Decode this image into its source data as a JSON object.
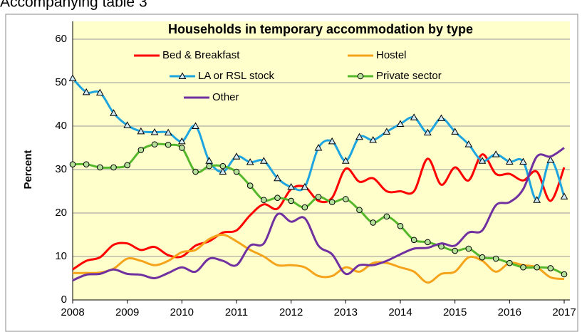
{
  "header": "Accompanying table 3",
  "chart_data": {
    "type": "line",
    "title": "Households in temporary accommodation by type",
    "y_label": "Percent",
    "x": [
      2008,
      2008.25,
      2008.5,
      2008.75,
      2009,
      2009.25,
      2009.5,
      2009.75,
      2010,
      2010.25,
      2010.5,
      2010.75,
      2011,
      2011.25,
      2011.5,
      2011.75,
      2012,
      2012.25,
      2012.5,
      2012.75,
      2013,
      2013.25,
      2013.5,
      2013.75,
      2014,
      2014.25,
      2014.5,
      2014.75,
      2015,
      2015.25,
      2015.5,
      2015.75,
      2016,
      2016.25,
      2016.5,
      2016.75,
      2017
    ],
    "xlim": [
      2008,
      2017
    ],
    "xticks": [
      2008,
      2009,
      2010,
      2011,
      2012,
      2013,
      2014,
      2015,
      2016,
      2017
    ],
    "ylim": [
      0,
      60
    ],
    "yticks": [
      0,
      10,
      20,
      30,
      40,
      50,
      60
    ],
    "grid": true,
    "series": [
      {
        "name": "Bed & Breakfast",
        "color": "#ff0000",
        "values": [
          7,
          9,
          9.8,
          12.7,
          13,
          11.5,
          12.2,
          10.3,
          10,
          12.5,
          13.5,
          15.5,
          16,
          19.5,
          22,
          21,
          25.5,
          26,
          22.8,
          23.5,
          30.2,
          27.2,
          28,
          25,
          25,
          25,
          32.5,
          26.5,
          30.5,
          27.5,
          33.5,
          29,
          29,
          27.5,
          29.5,
          22.8,
          30.5
        ]
      },
      {
        "name": "Hostel",
        "color": "#f5a31a",
        "values": [
          6.2,
          6.2,
          6.3,
          7.2,
          9.5,
          9,
          8,
          9,
          11,
          11.5,
          14,
          15,
          13.5,
          11.5,
          10,
          8,
          8,
          7.5,
          5.5,
          5.5,
          7.5,
          6.5,
          8.5,
          8.5,
          7.5,
          6.5,
          4,
          6,
          6.5,
          9.8,
          9,
          6.5,
          8.5,
          8,
          7.5,
          5.2,
          4.8
        ]
      },
      {
        "name": "LA or RSL stock",
        "color": "#1ea5e0",
        "marker": "triangle",
        "values": [
          51,
          47.8,
          47.7,
          43,
          40.2,
          38.8,
          38.6,
          38.5,
          36.5,
          40,
          32,
          29.5,
          33,
          31.7,
          32,
          28,
          26,
          26,
          35,
          36.5,
          32,
          37.5,
          36.8,
          38.7,
          40.5,
          42,
          38.5,
          41.8,
          38.7,
          35.8,
          32,
          33.5,
          31.8,
          31.8,
          23,
          32.2,
          23.8
        ]
      },
      {
        "name": "Private sector",
        "color": "#55b72c",
        "marker": "circle",
        "values": [
          31.2,
          31.2,
          30.5,
          30.5,
          31,
          34.5,
          35.8,
          35.7,
          35,
          29.5,
          30.8,
          30.8,
          29.5,
          26.3,
          23,
          23.5,
          22.8,
          21.3,
          23.7,
          22.5,
          23.2,
          20.7,
          17.8,
          19.2,
          17,
          13.8,
          13.3,
          12.3,
          11.3,
          11.8,
          9.8,
          9.5,
          8.5,
          7.5,
          7.5,
          7.3,
          5.9
        ]
      },
      {
        "name": "Other",
        "color": "#7030a0",
        "values": [
          4.5,
          5.8,
          6,
          7,
          6,
          5.8,
          5,
          6.2,
          7.5,
          6.5,
          9.5,
          9,
          8,
          12.5,
          13,
          19.7,
          18,
          18.8,
          12.5,
          10.5,
          6,
          8,
          8,
          9,
          10.5,
          11.8,
          12,
          13,
          12.5,
          15.5,
          16,
          21.8,
          22.5,
          25.5,
          33,
          33,
          35
        ]
      }
    ]
  }
}
